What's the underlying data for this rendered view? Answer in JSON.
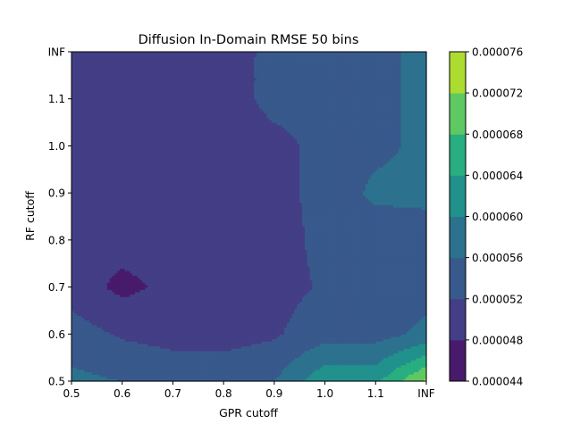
{
  "chart_data": {
    "type": "contourf",
    "title": "Diffusion In-Domain RMSE 50 bins",
    "xlabel": "GPR cutoff",
    "ylabel": "RF cutoff",
    "x": [
      0.5,
      0.6,
      0.7,
      0.8,
      0.9,
      1.0,
      1.1,
      "INF"
    ],
    "y": [
      0.5,
      0.6,
      0.7,
      0.8,
      0.9,
      1.0,
      1.1,
      "INF"
    ],
    "xticks": [
      "0.5",
      "0.6",
      "0.7",
      "0.8",
      "0.9",
      "1.0",
      "1.1",
      "INF"
    ],
    "yticks": [
      "0.5",
      "0.6",
      "0.7",
      "0.8",
      "0.9",
      "1.0",
      "1.1",
      "INF"
    ],
    "z": [
      [
        5.7e-05,
        5.6e-05,
        5.5e-05,
        5.45e-05,
        5.6e-05,
        6.3e-05,
        6.3e-05,
        7.3e-05
      ],
      [
        5.4e-05,
        5.15e-05,
        5.05e-05,
        5.05e-05,
        5.15e-05,
        5.45e-05,
        5.45e-05,
        5.7e-05
      ],
      [
        5e-05,
        4.7e-05,
        4.9e-05,
        4.98e-05,
        5.05e-05,
        5.25e-05,
        5.25e-05,
        5.45e-05
      ],
      [
        4.95e-05,
        4.95e-05,
        4.95e-05,
        4.97e-05,
        5.05e-05,
        5.3e-05,
        5.3e-05,
        5.4e-05
      ],
      [
        4.95e-05,
        4.95e-05,
        4.95e-05,
        4.95e-05,
        5.1e-05,
        5.3e-05,
        5.7e-05,
        5.7e-05
      ],
      [
        4.95e-05,
        4.95e-05,
        4.95e-05,
        4.95e-05,
        5.05e-05,
        5.35e-05,
        5.5e-05,
        5.7e-05
      ],
      [
        4.95e-05,
        4.95e-05,
        4.95e-05,
        4.95e-05,
        5.35e-05,
        5.35e-05,
        5.5e-05,
        5.7e-05
      ],
      [
        4.95e-05,
        4.95e-05,
        4.95e-05,
        4.95e-05,
        5.35e-05,
        5.35e-05,
        5.5e-05,
        5.7e-05
      ]
    ],
    "levels": [
      4.4e-05,
      4.8e-05,
      5.2e-05,
      5.6e-05,
      6e-05,
      6.4e-05,
      6.8e-05,
      7.2e-05,
      7.6e-05
    ],
    "level_labels": [
      "0.000044",
      "0.000048",
      "0.000052",
      "0.000056",
      "0.000060",
      "0.000064",
      "0.000068",
      "0.000072",
      "0.000076"
    ],
    "colors": [
      "#481a6c",
      "#433e85",
      "#38598c",
      "#2c728e",
      "#21918c",
      "#28ae80",
      "#5ec962",
      "#addc30"
    ],
    "colormap": "viridis",
    "colorbar": "right",
    "grid": false
  }
}
